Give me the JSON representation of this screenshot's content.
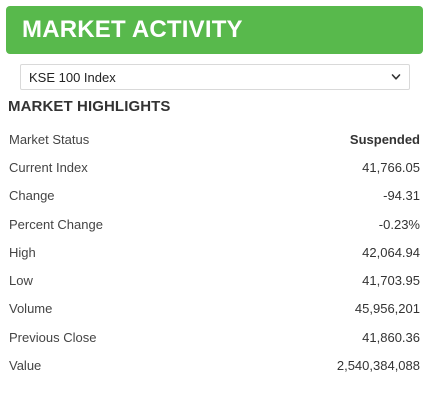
{
  "header": {
    "title": "MARKET ACTIVITY"
  },
  "index_select": {
    "selected": "KSE 100 Index"
  },
  "highlights": {
    "title": "MARKET HIGHLIGHTS",
    "rows": [
      {
        "label": "Market Status",
        "value": "Suspended"
      },
      {
        "label": "Current Index",
        "value": "41,766.05"
      },
      {
        "label": "Change",
        "value": "-94.31"
      },
      {
        "label": "Percent Change",
        "value": "-0.23%"
      },
      {
        "label": "High",
        "value": "42,064.94"
      },
      {
        "label": "Low",
        "value": "41,703.95"
      },
      {
        "label": "Volume",
        "value": "45,956,201"
      },
      {
        "label": "Previous Close",
        "value": "41,860.36"
      },
      {
        "label": "Value",
        "value": "2,540,384,088"
      }
    ]
  },
  "colors": {
    "header_bg": "#58b94c",
    "header_text": "#ffffff"
  }
}
